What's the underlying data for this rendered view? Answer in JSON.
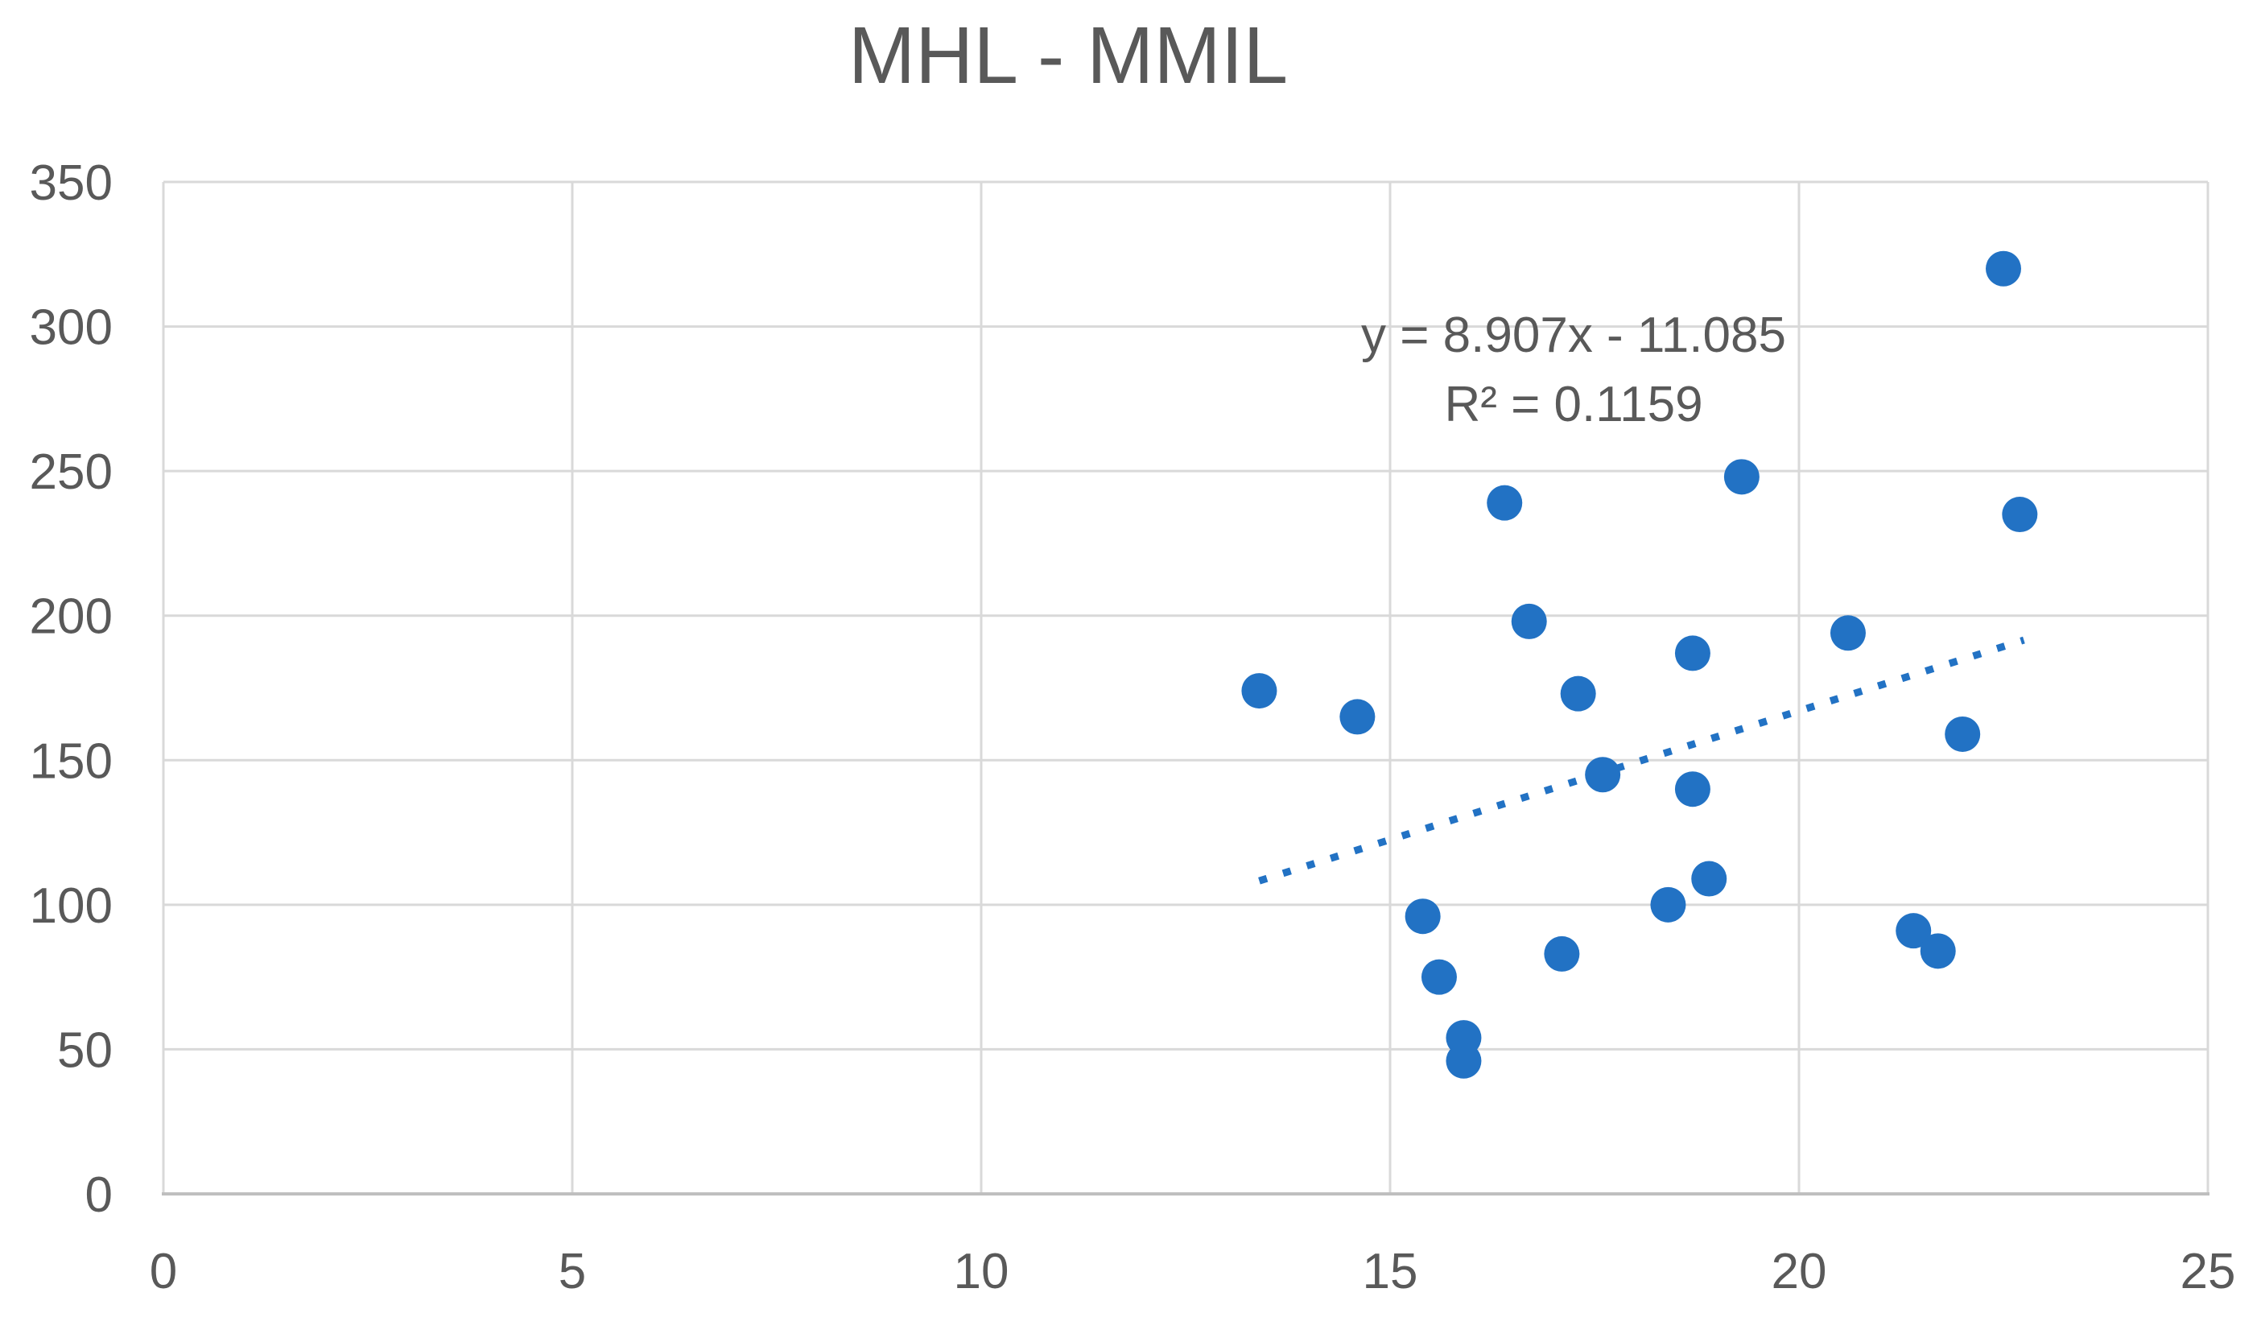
{
  "chart": {
    "title": "MHL - MMIL",
    "annotation": {
      "equation": "y = 8.907x - 11.085",
      "r_squared": "R² = 0.1159"
    }
  },
  "chart_data": {
    "type": "scatter",
    "title": "MHL - MMIL",
    "xlabel": "",
    "ylabel": "",
    "xlim": [
      0,
      25
    ],
    "ylim": [
      0,
      350
    ],
    "x_ticks": [
      0,
      5,
      10,
      15,
      20,
      25
    ],
    "y_ticks": [
      0,
      50,
      100,
      150,
      200,
      250,
      300,
      350
    ],
    "grid": true,
    "legend": false,
    "points": [
      {
        "x": 13.4,
        "y": 174
      },
      {
        "x": 14.6,
        "y": 165
      },
      {
        "x": 15.4,
        "y": 96
      },
      {
        "x": 15.6,
        "y": 75
      },
      {
        "x": 15.9,
        "y": 54
      },
      {
        "x": 15.9,
        "y": 46
      },
      {
        "x": 16.4,
        "y": 239
      },
      {
        "x": 16.7,
        "y": 198
      },
      {
        "x": 17.1,
        "y": 83
      },
      {
        "x": 17.3,
        "y": 173
      },
      {
        "x": 17.6,
        "y": 145
      },
      {
        "x": 18.4,
        "y": 100
      },
      {
        "x": 18.7,
        "y": 187
      },
      {
        "x": 18.7,
        "y": 140
      },
      {
        "x": 18.9,
        "y": 109
      },
      {
        "x": 19.3,
        "y": 248
      },
      {
        "x": 20.6,
        "y": 194
      },
      {
        "x": 21.4,
        "y": 91
      },
      {
        "x": 21.7,
        "y": 84
      },
      {
        "x": 22.0,
        "y": 159
      },
      {
        "x": 22.5,
        "y": 320
      },
      {
        "x": 22.7,
        "y": 235
      }
    ],
    "trendline": {
      "type": "linear",
      "slope": 8.907,
      "intercept": -11.085,
      "equation": "y = 8.907x - 11.085",
      "r2": 0.1159,
      "x_start": 13.4,
      "x_end": 22.75,
      "style": "dotted"
    },
    "colors": {
      "marker": "#2272C4",
      "trendline": "#2272C4",
      "gridline": "#D9D9D9",
      "axis_line": "#BFBFBF",
      "text": "#595959"
    }
  }
}
